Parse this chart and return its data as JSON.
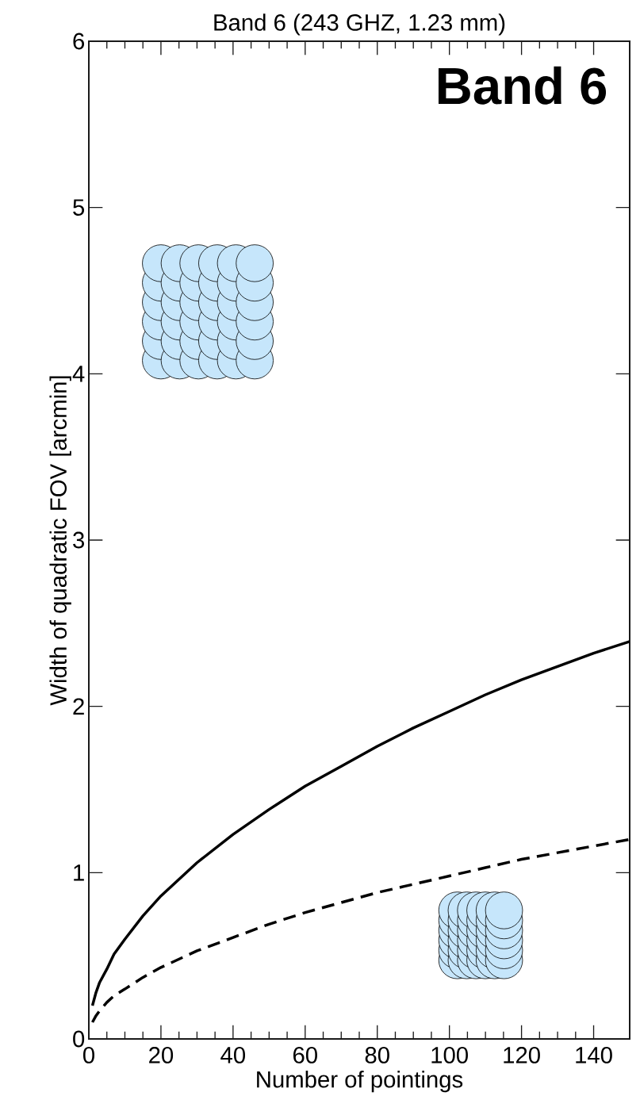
{
  "chart_data": {
    "type": "line",
    "title": "Band 6 (243 GHZ, 1.23 mm)",
    "xlabel": "Number of pointings",
    "ylabel": "Width of quadratic FOV [arcmin]",
    "annotations": [
      "Band 6"
    ],
    "x": [
      1,
      2,
      3,
      5,
      7,
      10,
      15,
      20,
      30,
      40,
      50,
      60,
      70,
      80,
      90,
      100,
      110,
      120,
      130,
      140,
      150
    ],
    "series": [
      {
        "color": "#000000",
        "line_style": "solid",
        "values": [
          0.2,
          0.28,
          0.34,
          0.42,
          0.51,
          0.6,
          0.74,
          0.86,
          1.06,
          1.23,
          1.38,
          1.52,
          1.64,
          1.76,
          1.87,
          1.97,
          2.07,
          2.16,
          2.24,
          2.32,
          2.39
        ]
      },
      {
        "color": "#000000",
        "line_style": "dashed",
        "values": [
          0.1,
          0.14,
          0.17,
          0.22,
          0.26,
          0.3,
          0.37,
          0.43,
          0.53,
          0.61,
          0.69,
          0.76,
          0.82,
          0.88,
          0.93,
          0.98,
          1.03,
          1.08,
          1.12,
          1.16,
          1.2
        ]
      }
    ],
    "xlim": [
      0,
      150
    ],
    "ylim": [
      0,
      6
    ],
    "xticks": [
      0,
      20,
      40,
      60,
      80,
      100,
      120,
      140
    ],
    "yticks": [
      0,
      1,
      2,
      3,
      4,
      5,
      6
    ]
  }
}
